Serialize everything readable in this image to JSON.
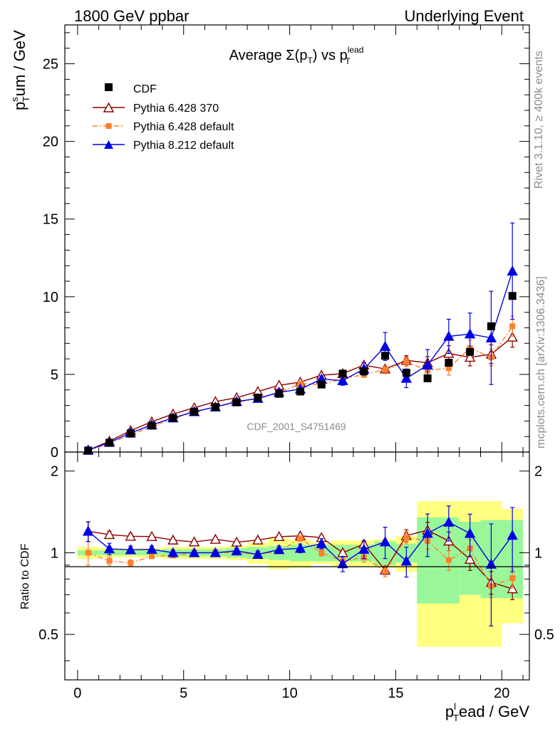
{
  "header": {
    "left": "1800 GeV ppbar",
    "right": "Underlying Event"
  },
  "side": {
    "rivet": "Rivet 3.1.10, ≥ 400k events",
    "mcplots": "mcplots.cern.ch [arXiv:1306.3436]"
  },
  "chart_data": {
    "type": "scatter",
    "title_main": "Average Σ(p",
    "title_sub_t": "T",
    "title_mid": ") vs p",
    "title_sup": "lead",
    "title_sub_t2": "T",
    "watermark": "CDF_2001_S4751469",
    "xlabel_main": "p",
    "xlabel_sup": "l",
    "xlabel_sub": "T",
    "xlabel_rest": "ead / GeV",
    "ylabel_main": "p",
    "ylabel_sup": "s",
    "ylabel_sub": "T",
    "ylabel_rest": "um / GeV",
    "ratio_ylabel": "Ratio to CDF",
    "xlim": [
      -0.6,
      21.3
    ],
    "ylim": [
      0,
      27.5
    ],
    "ratio_ylim": [
      0.34,
      2.35
    ],
    "xticks": [
      "0",
      "5",
      "10",
      "15",
      "20"
    ],
    "yticks": [
      "0",
      "5",
      "10",
      "15",
      "20",
      "25"
    ],
    "ratio_yticks": [
      "0.5",
      "1",
      "2"
    ],
    "x": [
      0.5,
      1.5,
      2.5,
      3.5,
      4.5,
      5.5,
      6.5,
      7.5,
      8.5,
      9.5,
      10.5,
      11.5,
      12.5,
      13.5,
      14.5,
      15.5,
      16.5,
      17.5,
      18.5,
      19.5,
      20.5
    ],
    "band_edges": [
      0,
      1,
      2,
      3,
      4,
      5,
      6,
      7,
      8,
      9,
      10,
      11,
      12,
      13,
      14,
      15,
      16,
      17,
      18,
      19,
      20,
      21
    ],
    "data": {
      "name": "CDF",
      "color": "#000000",
      "values": [
        0.1,
        0.6,
        1.2,
        1.7,
        2.2,
        2.6,
        2.9,
        3.2,
        3.5,
        3.75,
        3.9,
        4.35,
        5.05,
        5.2,
        6.2,
        5.1,
        4.75,
        5.75,
        6.45,
        8.1,
        10.05
      ],
      "band_stat": [
        0.02,
        0.02,
        0.02,
        0.02,
        0.03,
        0.03,
        0.03,
        0.04,
        0.05,
        0.06,
        0.07,
        0.07,
        0.07,
        0.07,
        0.1,
        0.08,
        0.35,
        0.35,
        0.3,
        0.32,
        0.32
      ],
      "band_total": [
        0.05,
        0.04,
        0.04,
        0.04,
        0.05,
        0.05,
        0.05,
        0.06,
        0.09,
        0.13,
        0.12,
        0.09,
        0.11,
        0.11,
        0.12,
        0.15,
        0.55,
        0.55,
        0.55,
        0.55,
        0.45
      ]
    },
    "series": [
      {
        "name": "Pythia 6.428 370",
        "color": "#8b0000",
        "marker": "open-triangle",
        "dash": "",
        "values": [
          0.12,
          0.7,
          1.38,
          1.95,
          2.45,
          2.85,
          3.25,
          3.5,
          3.9,
          4.3,
          4.5,
          4.95,
          5.05,
          5.6,
          5.35,
          5.9,
          5.75,
          6.35,
          6.1,
          6.3,
          7.4
        ],
        "errors": [
          0.01,
          0.02,
          0.03,
          0.03,
          0.04,
          0.04,
          0.05,
          0.05,
          0.06,
          0.07,
          0.08,
          0.09,
          0.1,
          0.12,
          0.2,
          0.3,
          0.4,
          0.5,
          0.55,
          0.6,
          0.65
        ]
      },
      {
        "name": "Pythia 6.428 default",
        "color": "#ff7f2a",
        "marker": "square",
        "dash": "7,3,2,3",
        "values": [
          0.1,
          0.56,
          1.1,
          1.65,
          2.15,
          2.6,
          2.9,
          3.2,
          3.45,
          3.8,
          4.4,
          4.35,
          4.7,
          5.0,
          5.3,
          5.8,
          5.25,
          5.4,
          6.7,
          6.1,
          8.1
        ],
        "errors": [
          0.01,
          0.02,
          0.03,
          0.03,
          0.04,
          0.04,
          0.05,
          0.06,
          0.07,
          0.08,
          0.1,
          0.12,
          0.15,
          0.2,
          0.25,
          0.3,
          0.35,
          0.45,
          0.5,
          0.55,
          0.65
        ]
      },
      {
        "name": "Pythia 8.212 default",
        "color": "#0000e6",
        "marker": "triangle",
        "dash": "",
        "values": [
          0.12,
          0.62,
          1.23,
          1.75,
          2.2,
          2.6,
          2.9,
          3.25,
          3.45,
          3.85,
          4.05,
          4.7,
          4.6,
          5.35,
          6.8,
          4.75,
          5.6,
          7.45,
          7.6,
          7.35,
          11.65
        ],
        "errors": [
          0.01,
          0.03,
          0.04,
          0.05,
          0.05,
          0.06,
          0.07,
          0.08,
          0.1,
          0.12,
          0.15,
          0.2,
          0.3,
          0.4,
          0.9,
          0.6,
          1.0,
          1.1,
          1.35,
          3.0,
          3.1
        ]
      }
    ],
    "legend_position": "top-left"
  }
}
